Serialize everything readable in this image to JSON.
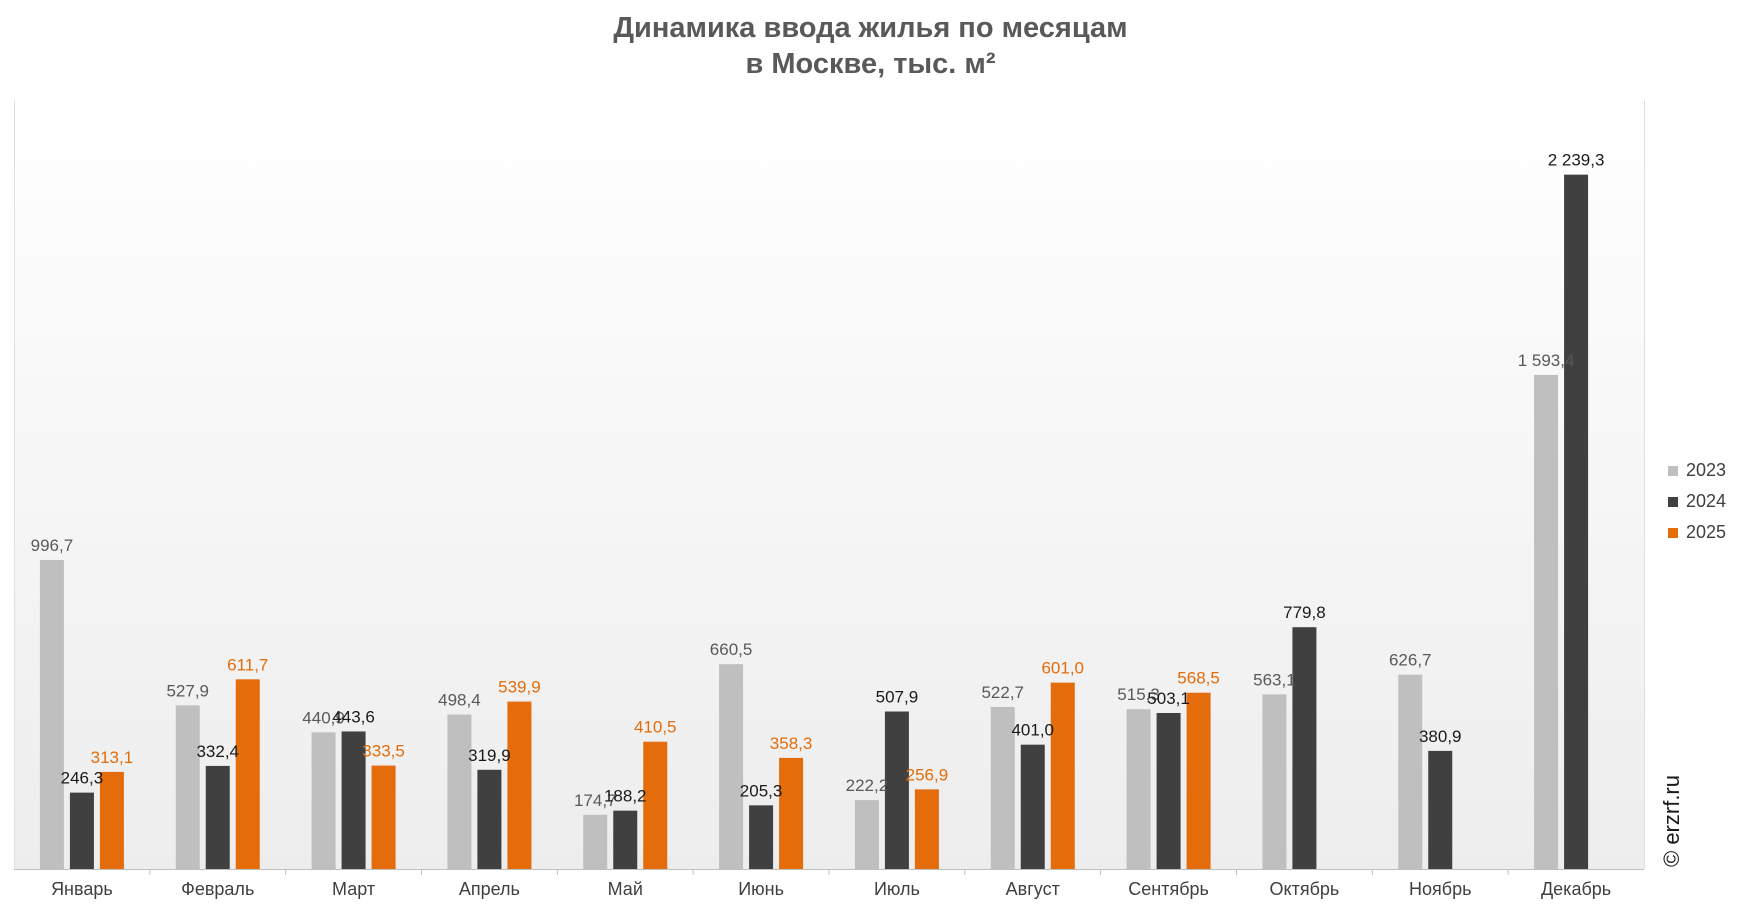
{
  "title_line1": "Динамика ввода жилья по месяцам",
  "title_line2": "в Москве, тыс. м²",
  "watermark": "© erzrf.ru",
  "chart_data": {
    "type": "bar",
    "categories": [
      "Январь",
      "Февраль",
      "Март",
      "Апрель",
      "Май",
      "Июнь",
      "Июль",
      "Август",
      "Сентябрь",
      "Октябрь",
      "Ноябрь",
      "Декабрь"
    ],
    "series": [
      {
        "name": "2023",
        "color": "#bfbfbf",
        "label_color": "#595959",
        "values": [
          996.7,
          527.9,
          440.9,
          498.4,
          174.7,
          660.5,
          222.2,
          522.7,
          515.3,
          563.1,
          626.7,
          1593.4
        ],
        "labels": [
          "996,7",
          "527,9",
          "440,9",
          "498,4",
          "174,7",
          "660,5",
          "222,2",
          "522,7",
          "515,3",
          "563,1",
          "626,7",
          "1 593,4"
        ]
      },
      {
        "name": "2024",
        "color": "#404040",
        "label_color": "#1a1a1a",
        "values": [
          246.3,
          332.4,
          443.6,
          319.9,
          188.2,
          205.3,
          507.9,
          401.0,
          503.1,
          779.8,
          380.9,
          2239.3
        ],
        "labels": [
          "246,3",
          "332,4",
          "443,6",
          "319,9",
          "188,2",
          "205,3",
          "507,9",
          "401,0",
          "503,1",
          "779,8",
          "380,9",
          "2 239,3"
        ]
      },
      {
        "name": "2025",
        "color": "#e46c0a",
        "label_color": "#e46c0a",
        "values": [
          313.1,
          611.7,
          333.5,
          539.9,
          410.5,
          358.3,
          256.9,
          601.0,
          568.5,
          null,
          null,
          null
        ],
        "labels": [
          "313,1",
          "611,7",
          "333,5",
          "539,9",
          "410,5",
          "358,3",
          "256,9",
          "601,0",
          "568,5",
          "",
          "",
          ""
        ]
      }
    ],
    "ylim": [
      0,
      2480
    ],
    "legend_position": "right",
    "grid": false
  }
}
